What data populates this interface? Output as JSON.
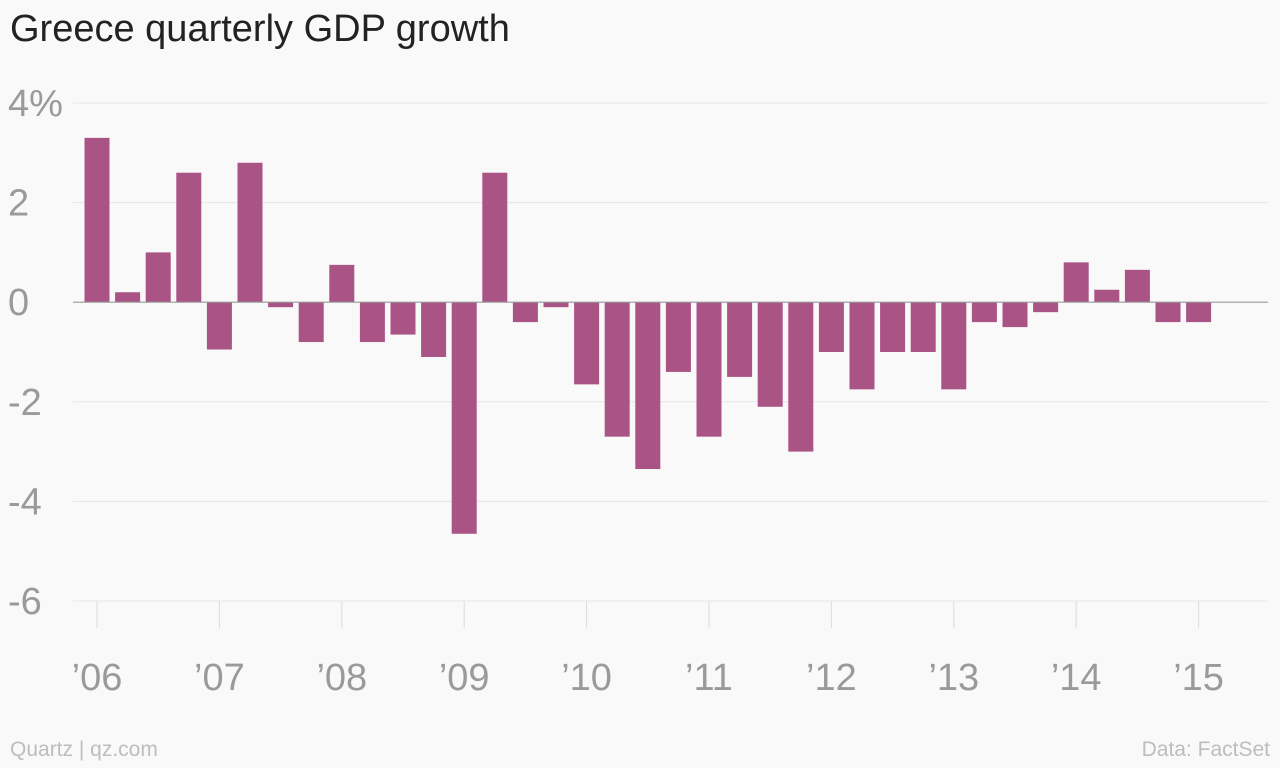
{
  "chart_data": {
    "type": "bar",
    "title": "Greece quarterly GDP growth",
    "bar_color": "#aa5486",
    "ylim": [
      -6,
      4
    ],
    "y_ticks": [
      {
        "value": 4,
        "label": "4%"
      },
      {
        "value": 2,
        "label": "2"
      },
      {
        "value": 0,
        "label": "0"
      },
      {
        "value": -2,
        "label": "-2"
      },
      {
        "value": -4,
        "label": "-4"
      },
      {
        "value": -6,
        "label": "-6"
      }
    ],
    "x_ticks": [
      {
        "quarter_index": 0,
        "label": "’06"
      },
      {
        "quarter_index": 4,
        "label": "’07"
      },
      {
        "quarter_index": 8,
        "label": "’08"
      },
      {
        "quarter_index": 12,
        "label": "’09"
      },
      {
        "quarter_index": 16,
        "label": "’10"
      },
      {
        "quarter_index": 20,
        "label": "’11"
      },
      {
        "quarter_index": 24,
        "label": "’12"
      },
      {
        "quarter_index": 28,
        "label": "’13"
      },
      {
        "quarter_index": 32,
        "label": "’14"
      },
      {
        "quarter_index": 36,
        "label": "’15"
      }
    ],
    "values": [
      3.3,
      0.2,
      1.0,
      2.6,
      -0.95,
      2.8,
      -0.1,
      -0.8,
      0.75,
      -0.8,
      -0.65,
      -1.1,
      -4.65,
      2.6,
      -0.4,
      -0.1,
      -1.65,
      -2.7,
      -3.35,
      -1.4,
      -2.7,
      -1.5,
      -2.1,
      -3.0,
      -1.0,
      -1.75,
      -1.0,
      -1.0,
      -1.75,
      -0.4,
      -0.5,
      -0.2,
      0.8,
      0.25,
      0.65,
      -0.4,
      -0.4
    ]
  },
  "footer": {
    "source_left": "Quartz | qz.com",
    "source_right": "Data: FactSet"
  }
}
